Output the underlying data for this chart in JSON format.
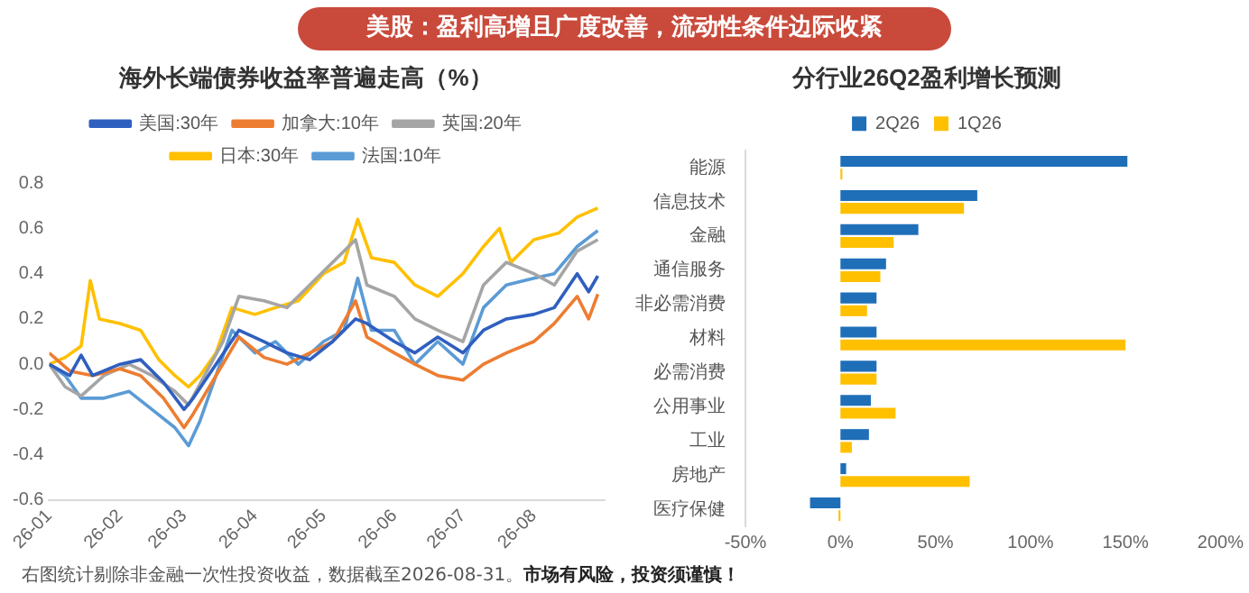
{
  "chart_data": [
    {
      "type": "line",
      "title": "海外长端债券收益率普遍走高（%）",
      "annotations": [
        "美股：盈利高增且广度改善，流动性条件边际收紧"
      ],
      "legend": "top",
      "grid": false,
      "marker": "none",
      "line_style": "solid",
      "xlim": [
        "2026-01-01",
        "2026-09-01"
      ],
      "xticks": [
        {
          "value": "2026-01",
          "label": "26-01"
        },
        {
          "value": "2026-02",
          "label": "26-02"
        },
        {
          "value": "2026-03",
          "label": "26-03"
        },
        {
          "value": "2026-04",
          "label": "26-04"
        },
        {
          "value": "2026-05",
          "label": "26-05"
        },
        {
          "value": "2026-06",
          "label": "26-06"
        },
        {
          "value": "2026-07",
          "label": "26-07"
        },
        {
          "value": "2026-08",
          "label": "26-08"
        }
      ],
      "ylim": [
        -0.6,
        0.8
      ],
      "yticks": [
        {
          "value": -0.6,
          "label": "-0.6"
        },
        {
          "value": -0.4,
          "label": "-0.4"
        },
        {
          "value": -0.2,
          "label": "-0.2"
        },
        {
          "value": 0,
          "label": "0.0"
        },
        {
          "value": 0.2,
          "label": "0.2"
        },
        {
          "value": 0.4,
          "label": "0.4"
        },
        {
          "value": 0.6,
          "label": "0.6"
        },
        {
          "value": 0.8,
          "label": "0.8"
        }
      ],
      "series": [
        {
          "name": "美国:30年",
          "color": "#2f5fbf",
          "x": [
            "2026-01-01",
            "2026-01-10",
            "2026-01-15",
            "2026-01-20",
            "2026-02-01",
            "2026-02-10",
            "2026-02-20",
            "2026-03-01",
            "2026-03-05",
            "2026-03-15",
            "2026-03-25",
            "2026-04-05",
            "2026-04-15",
            "2026-04-25",
            "2026-05-05",
            "2026-05-15",
            "2026-05-20",
            "2026-06-01",
            "2026-06-10",
            "2026-06-20",
            "2026-07-01",
            "2026-07-10",
            "2026-07-20",
            "2026-08-01",
            "2026-08-10",
            "2026-08-20",
            "2026-08-25",
            "2026-08-29"
          ],
          "values": [
            0.0,
            -0.05,
            0.04,
            -0.05,
            0.0,
            0.02,
            -0.08,
            -0.2,
            -0.15,
            0.0,
            0.15,
            0.1,
            0.05,
            0.02,
            0.1,
            0.2,
            0.18,
            0.1,
            0.05,
            0.12,
            0.05,
            0.15,
            0.2,
            0.22,
            0.25,
            0.4,
            0.32,
            0.39
          ]
        },
        {
          "name": "加拿大:10年",
          "color": "#ed7d31",
          "x": [
            "2026-01-01",
            "2026-01-10",
            "2026-01-20",
            "2026-02-01",
            "2026-02-10",
            "2026-02-20",
            "2026-03-01",
            "2026-03-05",
            "2026-03-15",
            "2026-03-25",
            "2026-04-05",
            "2026-04-15",
            "2026-04-25",
            "2026-05-05",
            "2026-05-15",
            "2026-05-20",
            "2026-06-01",
            "2026-06-10",
            "2026-06-20",
            "2026-07-01",
            "2026-07-10",
            "2026-07-20",
            "2026-08-01",
            "2026-08-10",
            "2026-08-20",
            "2026-08-25",
            "2026-08-29"
          ],
          "values": [
            0.05,
            -0.03,
            -0.05,
            -0.02,
            -0.05,
            -0.15,
            -0.28,
            -0.22,
            -0.05,
            0.12,
            0.03,
            0.0,
            0.05,
            0.1,
            0.28,
            0.12,
            0.05,
            0.0,
            -0.05,
            -0.07,
            0.0,
            0.05,
            0.1,
            0.18,
            0.3,
            0.2,
            0.31
          ]
        },
        {
          "name": "英国:20年",
          "color": "#a5a5a5",
          "x": [
            "2026-01-01",
            "2026-01-08",
            "2026-01-15",
            "2026-01-25",
            "2026-02-05",
            "2026-02-15",
            "2026-02-25",
            "2026-03-03",
            "2026-03-10",
            "2026-03-18",
            "2026-03-25",
            "2026-04-05",
            "2026-04-15",
            "2026-04-25",
            "2026-05-05",
            "2026-05-15",
            "2026-05-20",
            "2026-06-01",
            "2026-06-10",
            "2026-06-20",
            "2026-07-01",
            "2026-07-10",
            "2026-07-20",
            "2026-08-01",
            "2026-08-10",
            "2026-08-20",
            "2026-08-29"
          ],
          "values": [
            0.0,
            -0.1,
            -0.14,
            -0.05,
            0.0,
            -0.05,
            -0.12,
            -0.18,
            -0.05,
            0.1,
            0.3,
            0.28,
            0.25,
            0.35,
            0.45,
            0.55,
            0.35,
            0.3,
            0.2,
            0.15,
            0.1,
            0.35,
            0.45,
            0.4,
            0.35,
            0.5,
            0.55
          ]
        },
        {
          "name": "日本:30年",
          "color": "#ffc000",
          "x": [
            "2026-01-01",
            "2026-01-08",
            "2026-01-15",
            "2026-01-19",
            "2026-01-23",
            "2026-02-01",
            "2026-02-10",
            "2026-02-18",
            "2026-02-25",
            "2026-03-03",
            "2026-03-08",
            "2026-03-15",
            "2026-03-22",
            "2026-04-01",
            "2026-04-10",
            "2026-04-20",
            "2026-05-01",
            "2026-05-10",
            "2026-05-16",
            "2026-05-22",
            "2026-06-01",
            "2026-06-10",
            "2026-06-20",
            "2026-07-01",
            "2026-07-10",
            "2026-07-17",
            "2026-07-22",
            "2026-08-01",
            "2026-08-12",
            "2026-08-20",
            "2026-08-29"
          ],
          "values": [
            0.0,
            0.03,
            0.08,
            0.37,
            0.2,
            0.18,
            0.15,
            0.02,
            -0.05,
            -0.1,
            -0.05,
            0.05,
            0.25,
            0.22,
            0.25,
            0.28,
            0.4,
            0.45,
            0.64,
            0.47,
            0.45,
            0.35,
            0.3,
            0.4,
            0.52,
            0.6,
            0.45,
            0.55,
            0.58,
            0.65,
            0.69
          ]
        },
        {
          "name": "法国:10年",
          "color": "#5b9bd5",
          "x": [
            "2026-01-01",
            "2026-01-08",
            "2026-01-15",
            "2026-01-25",
            "2026-02-05",
            "2026-02-15",
            "2026-02-25",
            "2026-03-03",
            "2026-03-08",
            "2026-03-15",
            "2026-03-22",
            "2026-04-01",
            "2026-04-10",
            "2026-04-20",
            "2026-05-01",
            "2026-05-10",
            "2026-05-16",
            "2026-05-22",
            "2026-06-01",
            "2026-06-10",
            "2026-06-20",
            "2026-07-01",
            "2026-07-10",
            "2026-07-20",
            "2026-08-01",
            "2026-08-10",
            "2026-08-20",
            "2026-08-29"
          ],
          "values": [
            0.0,
            -0.05,
            -0.15,
            -0.15,
            -0.12,
            -0.2,
            -0.28,
            -0.36,
            -0.25,
            -0.05,
            0.15,
            0.05,
            0.1,
            0.0,
            0.1,
            0.15,
            0.38,
            0.15,
            0.15,
            0.0,
            0.1,
            0.0,
            0.25,
            0.35,
            0.38,
            0.4,
            0.52,
            0.59
          ]
        }
      ]
    },
    {
      "type": "bar",
      "orientation": "horizontal",
      "title": "分行业26Q2盈利增长预测",
      "annotations": [
        "右图统计剔除非金融一次性投资收益，数据截至2026-08-31。",
        "市场有风险，投资须谨慎！"
      ],
      "legend": "top",
      "grid": false,
      "categories": [
        "能源",
        "信息技术",
        "金融",
        "通信服务",
        "非必需消费",
        "材料",
        "必需消费",
        "公用事业",
        "工业",
        "房地产",
        "医疗保健"
      ],
      "xlim": [
        -50,
        200
      ],
      "xticks": [
        {
          "value": -50,
          "label": "-50%"
        },
        {
          "value": 0,
          "label": "0%"
        },
        {
          "value": 50,
          "label": "50%"
        },
        {
          "value": 100,
          "label": "100%"
        },
        {
          "value": 150,
          "label": "150%"
        },
        {
          "value": 200,
          "label": "200%"
        }
      ],
      "series": [
        {
          "name": "2Q26",
          "color": "#1f6fb8",
          "values": [
            151,
            72,
            41,
            24,
            19,
            19,
            19,
            16,
            15,
            3,
            -16
          ]
        },
        {
          "name": "1Q26",
          "color": "#ffc000",
          "values": [
            1,
            65,
            28,
            21,
            14,
            150,
            19,
            29,
            6,
            68,
            -1
          ]
        }
      ]
    }
  ]
}
